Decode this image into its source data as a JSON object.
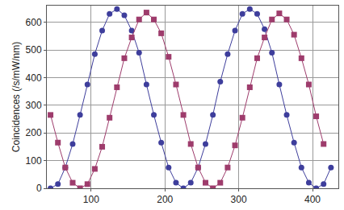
{
  "chart_data": {
    "type": "line",
    "ylabel": "Coincidences (/s/mW/nm)",
    "xlim": [
      40,
      435
    ],
    "xticks": [
      100,
      200,
      300,
      400
    ],
    "ylim": [
      0,
      660
    ],
    "yticks": [
      0,
      100,
      200,
      300,
      400,
      500,
      600
    ],
    "grid": true,
    "series": [
      {
        "color": "#3e3e9c",
        "marker": "circle",
        "x": [
          45,
          55,
          65,
          75,
          85,
          95,
          105,
          115,
          125,
          135,
          145,
          155,
          165,
          175,
          185,
          195,
          205,
          215,
          225,
          235,
          245,
          255,
          265,
          275,
          285,
          295,
          305,
          315,
          325,
          335,
          345,
          355,
          365,
          375,
          385,
          395,
          405,
          415,
          425
        ],
        "values": [
          0,
          15,
          75,
          160,
          265,
          375,
          485,
          570,
          630,
          648,
          625,
          570,
          490,
          375,
          265,
          165,
          75,
          20,
          0,
          20,
          75,
          160,
          265,
          385,
          485,
          570,
          630,
          648,
          630,
          575,
          490,
          375,
          265,
          165,
          75,
          20,
          0,
          15,
          75
        ]
      },
      {
        "color": "#9e3c6c",
        "marker": "square",
        "x": [
          45,
          55,
          65,
          75,
          85,
          95,
          105,
          115,
          125,
          135,
          145,
          155,
          165,
          175,
          185,
          195,
          205,
          215,
          225,
          235,
          245,
          255,
          265,
          275,
          285,
          295,
          305,
          315,
          325,
          335,
          345,
          355,
          365,
          375,
          385,
          395,
          405,
          415
        ],
        "values": [
          265,
          165,
          75,
          20,
          0,
          15,
          70,
          150,
          255,
          365,
          470,
          545,
          610,
          635,
          610,
          560,
          475,
          375,
          265,
          160,
          75,
          20,
          0,
          20,
          75,
          155,
          255,
          365,
          470,
          545,
          610,
          632,
          610,
          555,
          470,
          375,
          260,
          160
        ]
      }
    ]
  }
}
